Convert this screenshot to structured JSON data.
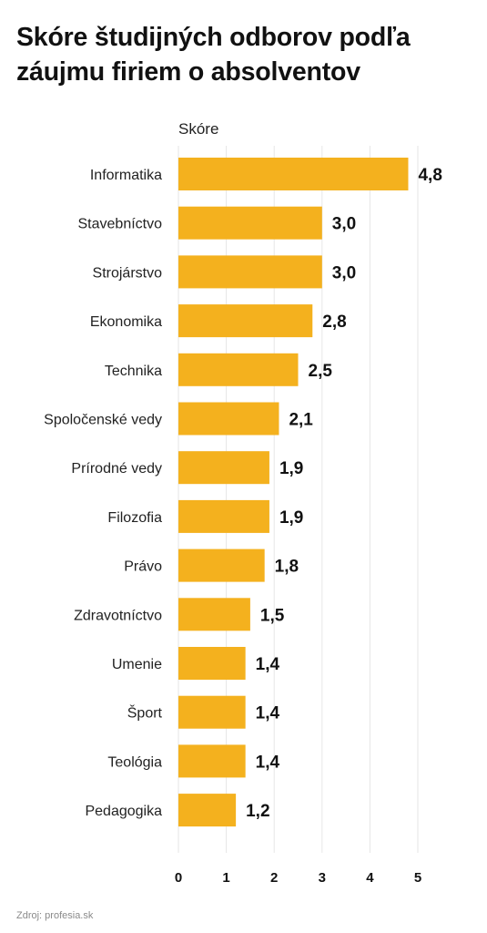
{
  "chart_data": {
    "type": "bar",
    "orientation": "horizontal",
    "title": "Skóre študijných odborov podľa záujmu firiem o absolventov",
    "xlabel": "Skóre",
    "ylabel": "",
    "categories": [
      "Informatika",
      "Stavebníctvo",
      "Strojárstvo",
      "Ekonomika",
      "Technika",
      "Spoločenské vedy",
      "Prírodné vedy",
      "Filozofia",
      "Právo",
      "Zdravotníctvo",
      "Umenie",
      "Šport",
      "Teológia",
      "Pedagogika"
    ],
    "values": [
      4.8,
      3.0,
      3.0,
      2.8,
      2.5,
      2.1,
      1.9,
      1.9,
      1.8,
      1.5,
      1.4,
      1.4,
      1.4,
      1.2
    ],
    "value_labels": [
      "4,8",
      "3,0",
      "3,0",
      "2,8",
      "2,5",
      "2,1",
      "1,9",
      "1,9",
      "1,8",
      "1,5",
      "1,4",
      "1,4",
      "1,4",
      "1,2"
    ],
    "xlim": [
      0,
      5
    ],
    "xticks": [
      0,
      1,
      2,
      3,
      4,
      5
    ],
    "xtick_labels": [
      "0",
      "1",
      "2",
      "3",
      "4",
      "5"
    ],
    "grid": "vertical",
    "bar_color": "#f4b11e",
    "grid_color": "#e6e6e6"
  },
  "source": "Zdroj: profesia.sk"
}
